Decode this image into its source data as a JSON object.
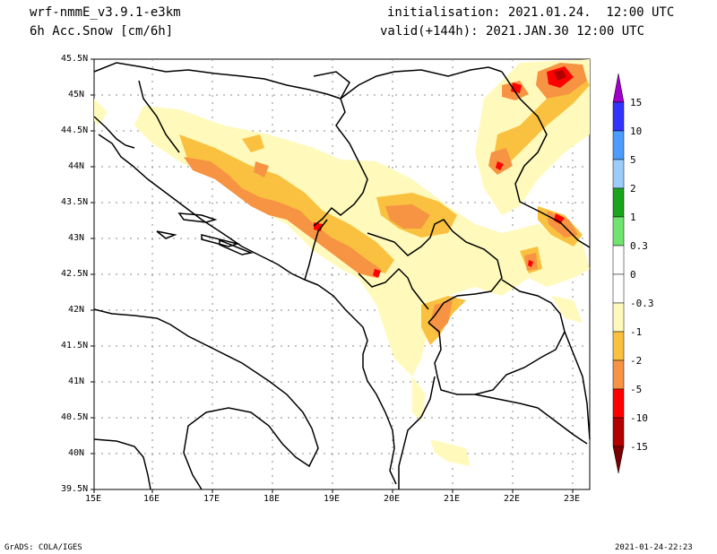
{
  "header": {
    "model": "wrf-nmmE_v3.9.1-e3km",
    "field": "6h Acc.Snow [cm/6h]",
    "init": "initialisation: 2021.01.24.  12:00 UTC",
    "valid": "valid(+144h): 2021.JAN.30 12:00 UTC"
  },
  "axes": {
    "lat_labels": [
      "45.5N",
      "45N",
      "44.5N",
      "44N",
      "43.5N",
      "43N",
      "42.5N",
      "42N",
      "41.5N",
      "41N",
      "40.5N",
      "40N",
      "39.5N"
    ],
    "lon_labels": [
      "15E",
      "16E",
      "17E",
      "18E",
      "19E",
      "20E",
      "21E",
      "22E",
      "23E"
    ]
  },
  "legend": {
    "labels": [
      "15",
      "10",
      "5",
      "2",
      "1",
      "0.3",
      "0",
      "-0.3",
      "-1",
      "-2",
      "-5",
      "-10",
      "-15"
    ],
    "colors": [
      "#a000c8",
      "#3333ff",
      "#4c9bff",
      "#9ccdfa",
      "#1ca51c",
      "#6fe46f",
      "#ffffff",
      "#fffabb",
      "#f9c13f",
      "#f69444",
      "#ff0000",
      "#b20000",
      "#7a0000"
    ]
  },
  "footer": {
    "left": "GrADS: COLA/IGES",
    "right": "2021-01-24-22:23"
  }
}
